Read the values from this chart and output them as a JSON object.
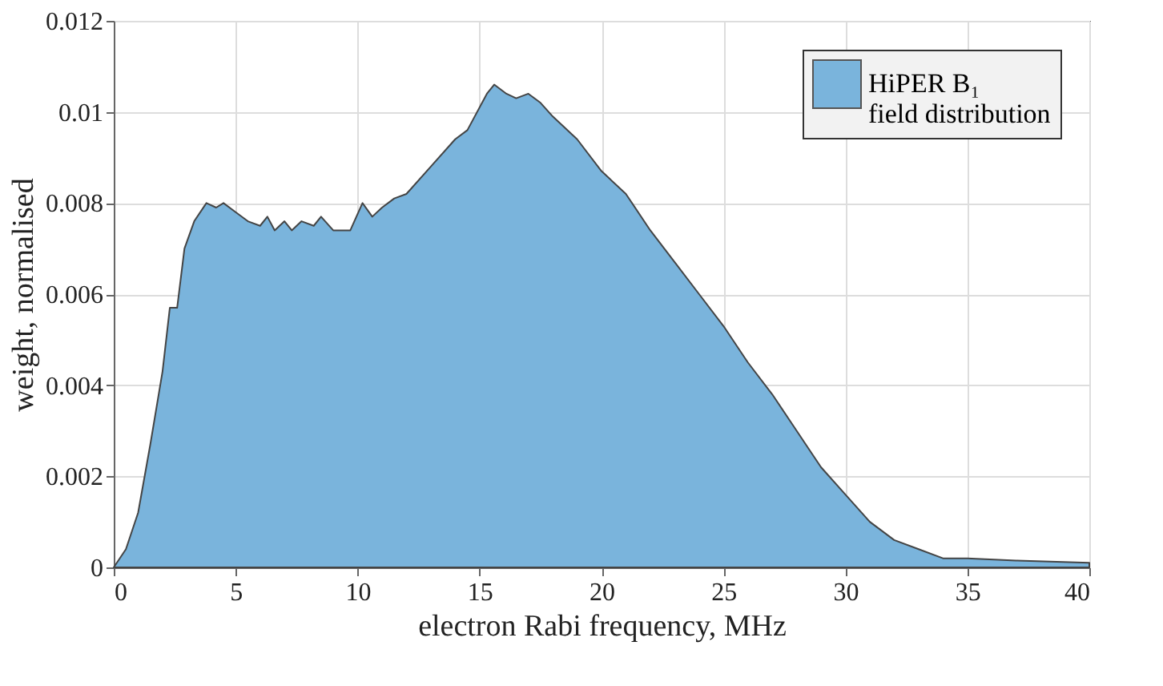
{
  "chart_data": {
    "type": "area",
    "xlabel": "electron Rabi frequency, MHz",
    "ylabel": "weight, normalised",
    "x": [
      0,
      0.5,
      1,
      1.5,
      2,
      2.3,
      2.6,
      2.9,
      3.3,
      3.8,
      4.2,
      4.5,
      5,
      5.5,
      6,
      6.3,
      6.6,
      7,
      7.3,
      7.7,
      8.2,
      8.5,
      9,
      9.7,
      10.2,
      10.6,
      11,
      11.5,
      12,
      13,
      14,
      14.5,
      15.3,
      15.6,
      16.1,
      16.5,
      17,
      17.5,
      18,
      19,
      20,
      21,
      22,
      23,
      24,
      25,
      26,
      27,
      28,
      29,
      30,
      31,
      32,
      33,
      34,
      35,
      37,
      40
    ],
    "series": [
      {
        "name": "HiPER B₁\nfield distribution",
        "color": "#7ab4dc",
        "values": [
          0,
          0.0004,
          0.0012,
          0.0027,
          0.0043,
          0.0057,
          0.0057,
          0.007,
          0.0076,
          0.008,
          0.0079,
          0.008,
          0.0078,
          0.0076,
          0.0075,
          0.0077,
          0.0074,
          0.0076,
          0.0074,
          0.0076,
          0.0075,
          0.0077,
          0.0074,
          0.0074,
          0.008,
          0.0077,
          0.0079,
          0.0081,
          0.0082,
          0.0088,
          0.0094,
          0.0096,
          0.0104,
          0.0106,
          0.0104,
          0.0103,
          0.0104,
          0.0102,
          0.0099,
          0.0094,
          0.0087,
          0.0082,
          0.0074,
          0.0067,
          0.006,
          0.0053,
          0.0045,
          0.0038,
          0.003,
          0.0022,
          0.0016,
          0.001,
          0.0006,
          0.0004,
          0.0002,
          0.0002,
          0.00015,
          0.0001
        ]
      }
    ],
    "xlim": [
      0,
      40
    ],
    "xticks": [
      0,
      5,
      10,
      15,
      20,
      25,
      30,
      35,
      40
    ],
    "ylim": [
      0,
      0.012
    ],
    "yticks": [
      0,
      0.002,
      0.004,
      0.006,
      0.008,
      0.01,
      0.012
    ],
    "grid": true,
    "legend": "top right"
  }
}
